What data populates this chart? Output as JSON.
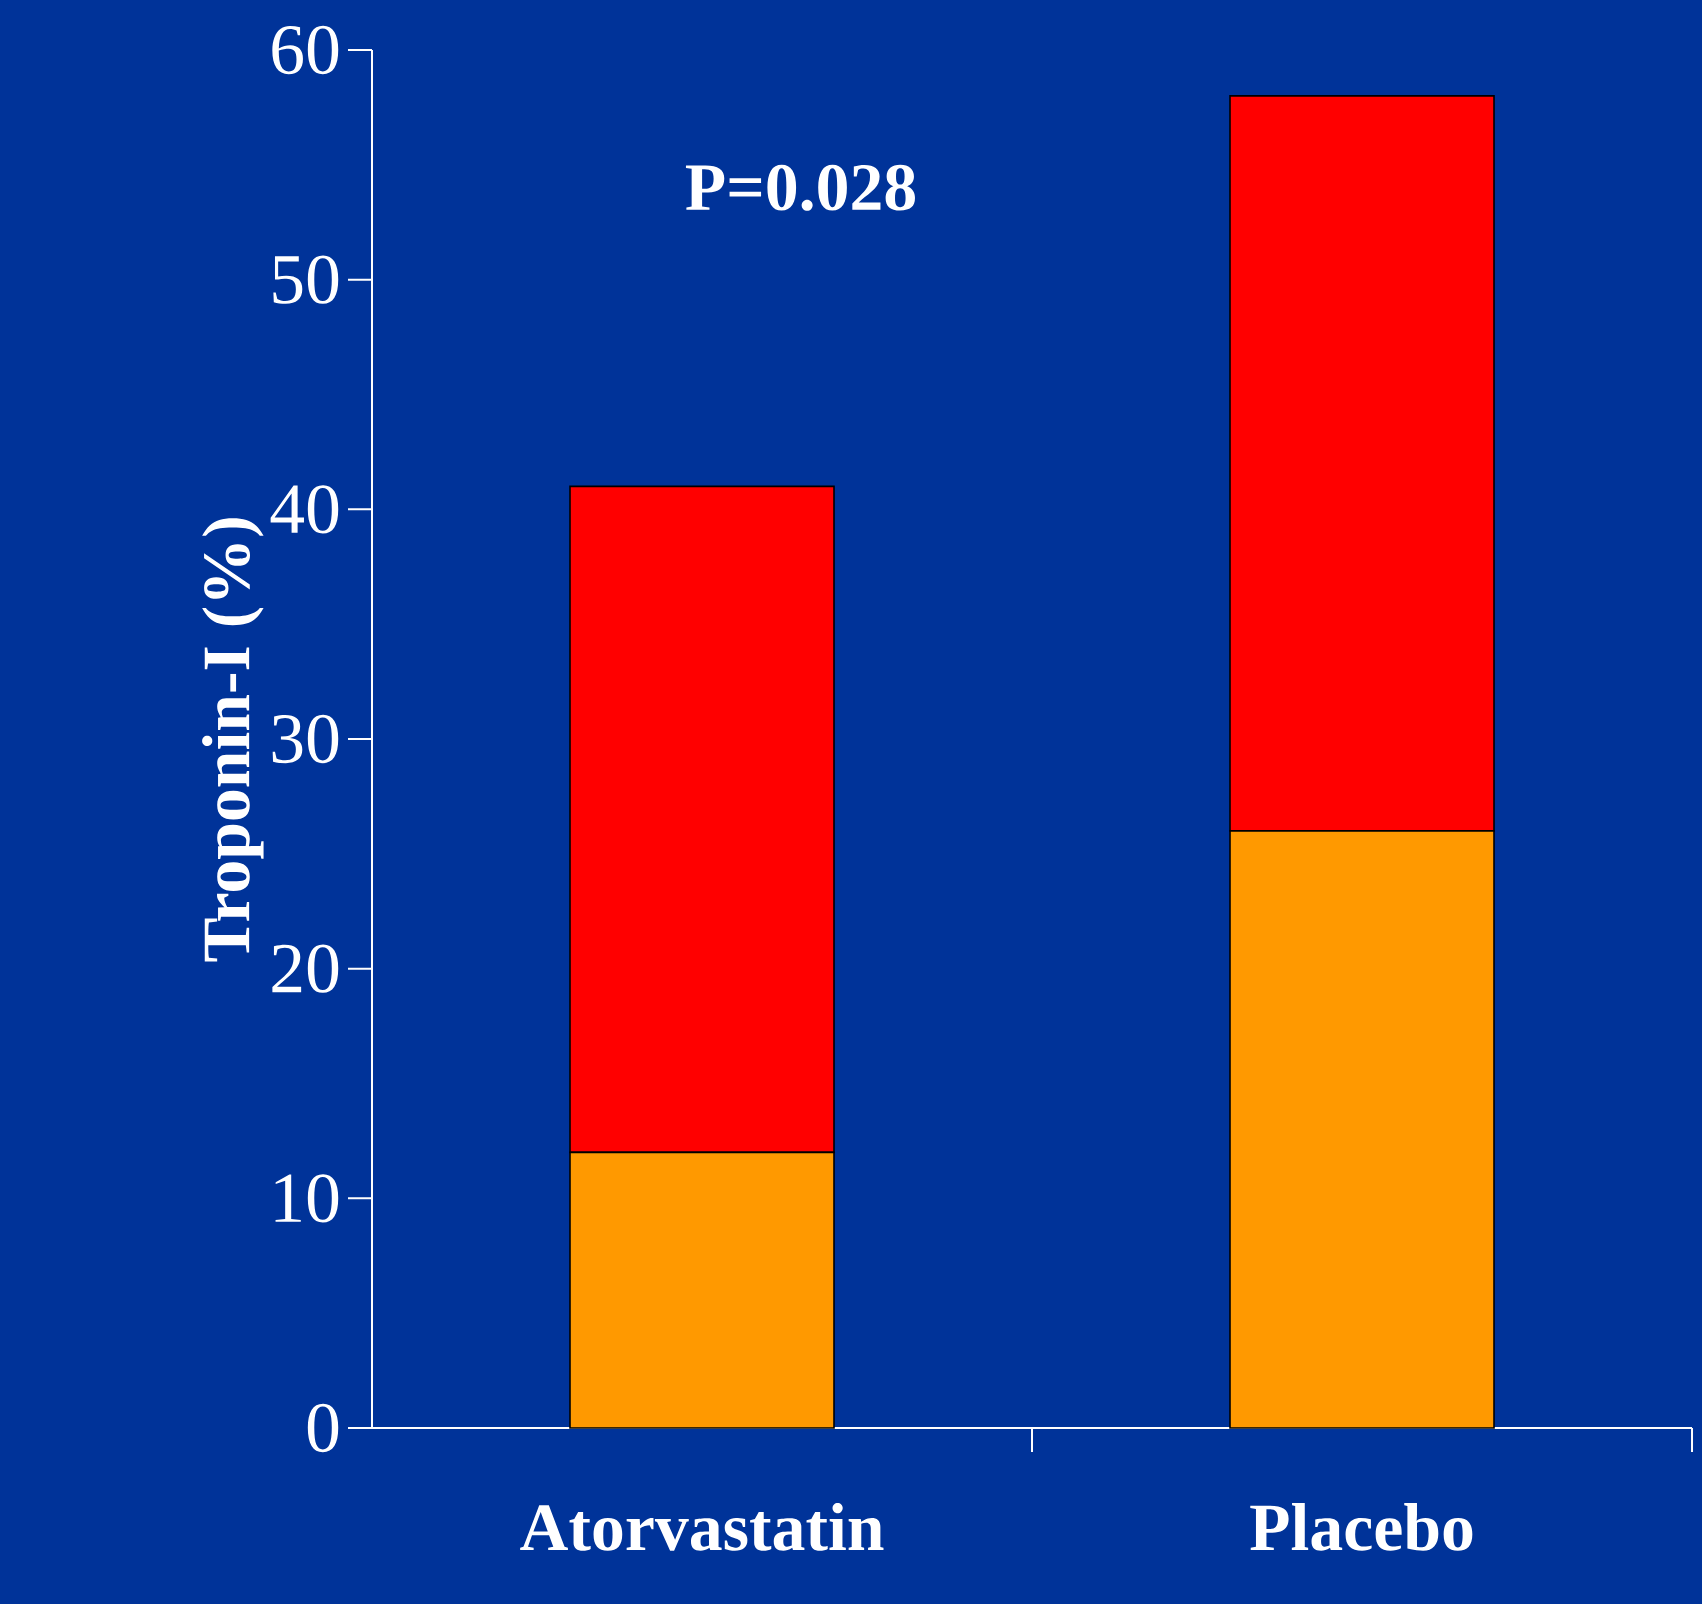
{
  "chart_data": {
    "type": "bar",
    "stacked": true,
    "ylabel": "Troponin-I (%)",
    "categories": [
      "Atorvastatin",
      "Placebo"
    ],
    "series": [
      {
        "color": "#ff9900",
        "values": [
          12,
          26
        ]
      },
      {
        "color": "#ff0000",
        "values": [
          29,
          32
        ]
      }
    ],
    "ylim": [
      0,
      60
    ],
    "yticks": [
      0,
      10,
      20,
      30,
      40,
      50,
      60
    ],
    "annotations": [
      "P=0.028"
    ],
    "grid": false
  }
}
